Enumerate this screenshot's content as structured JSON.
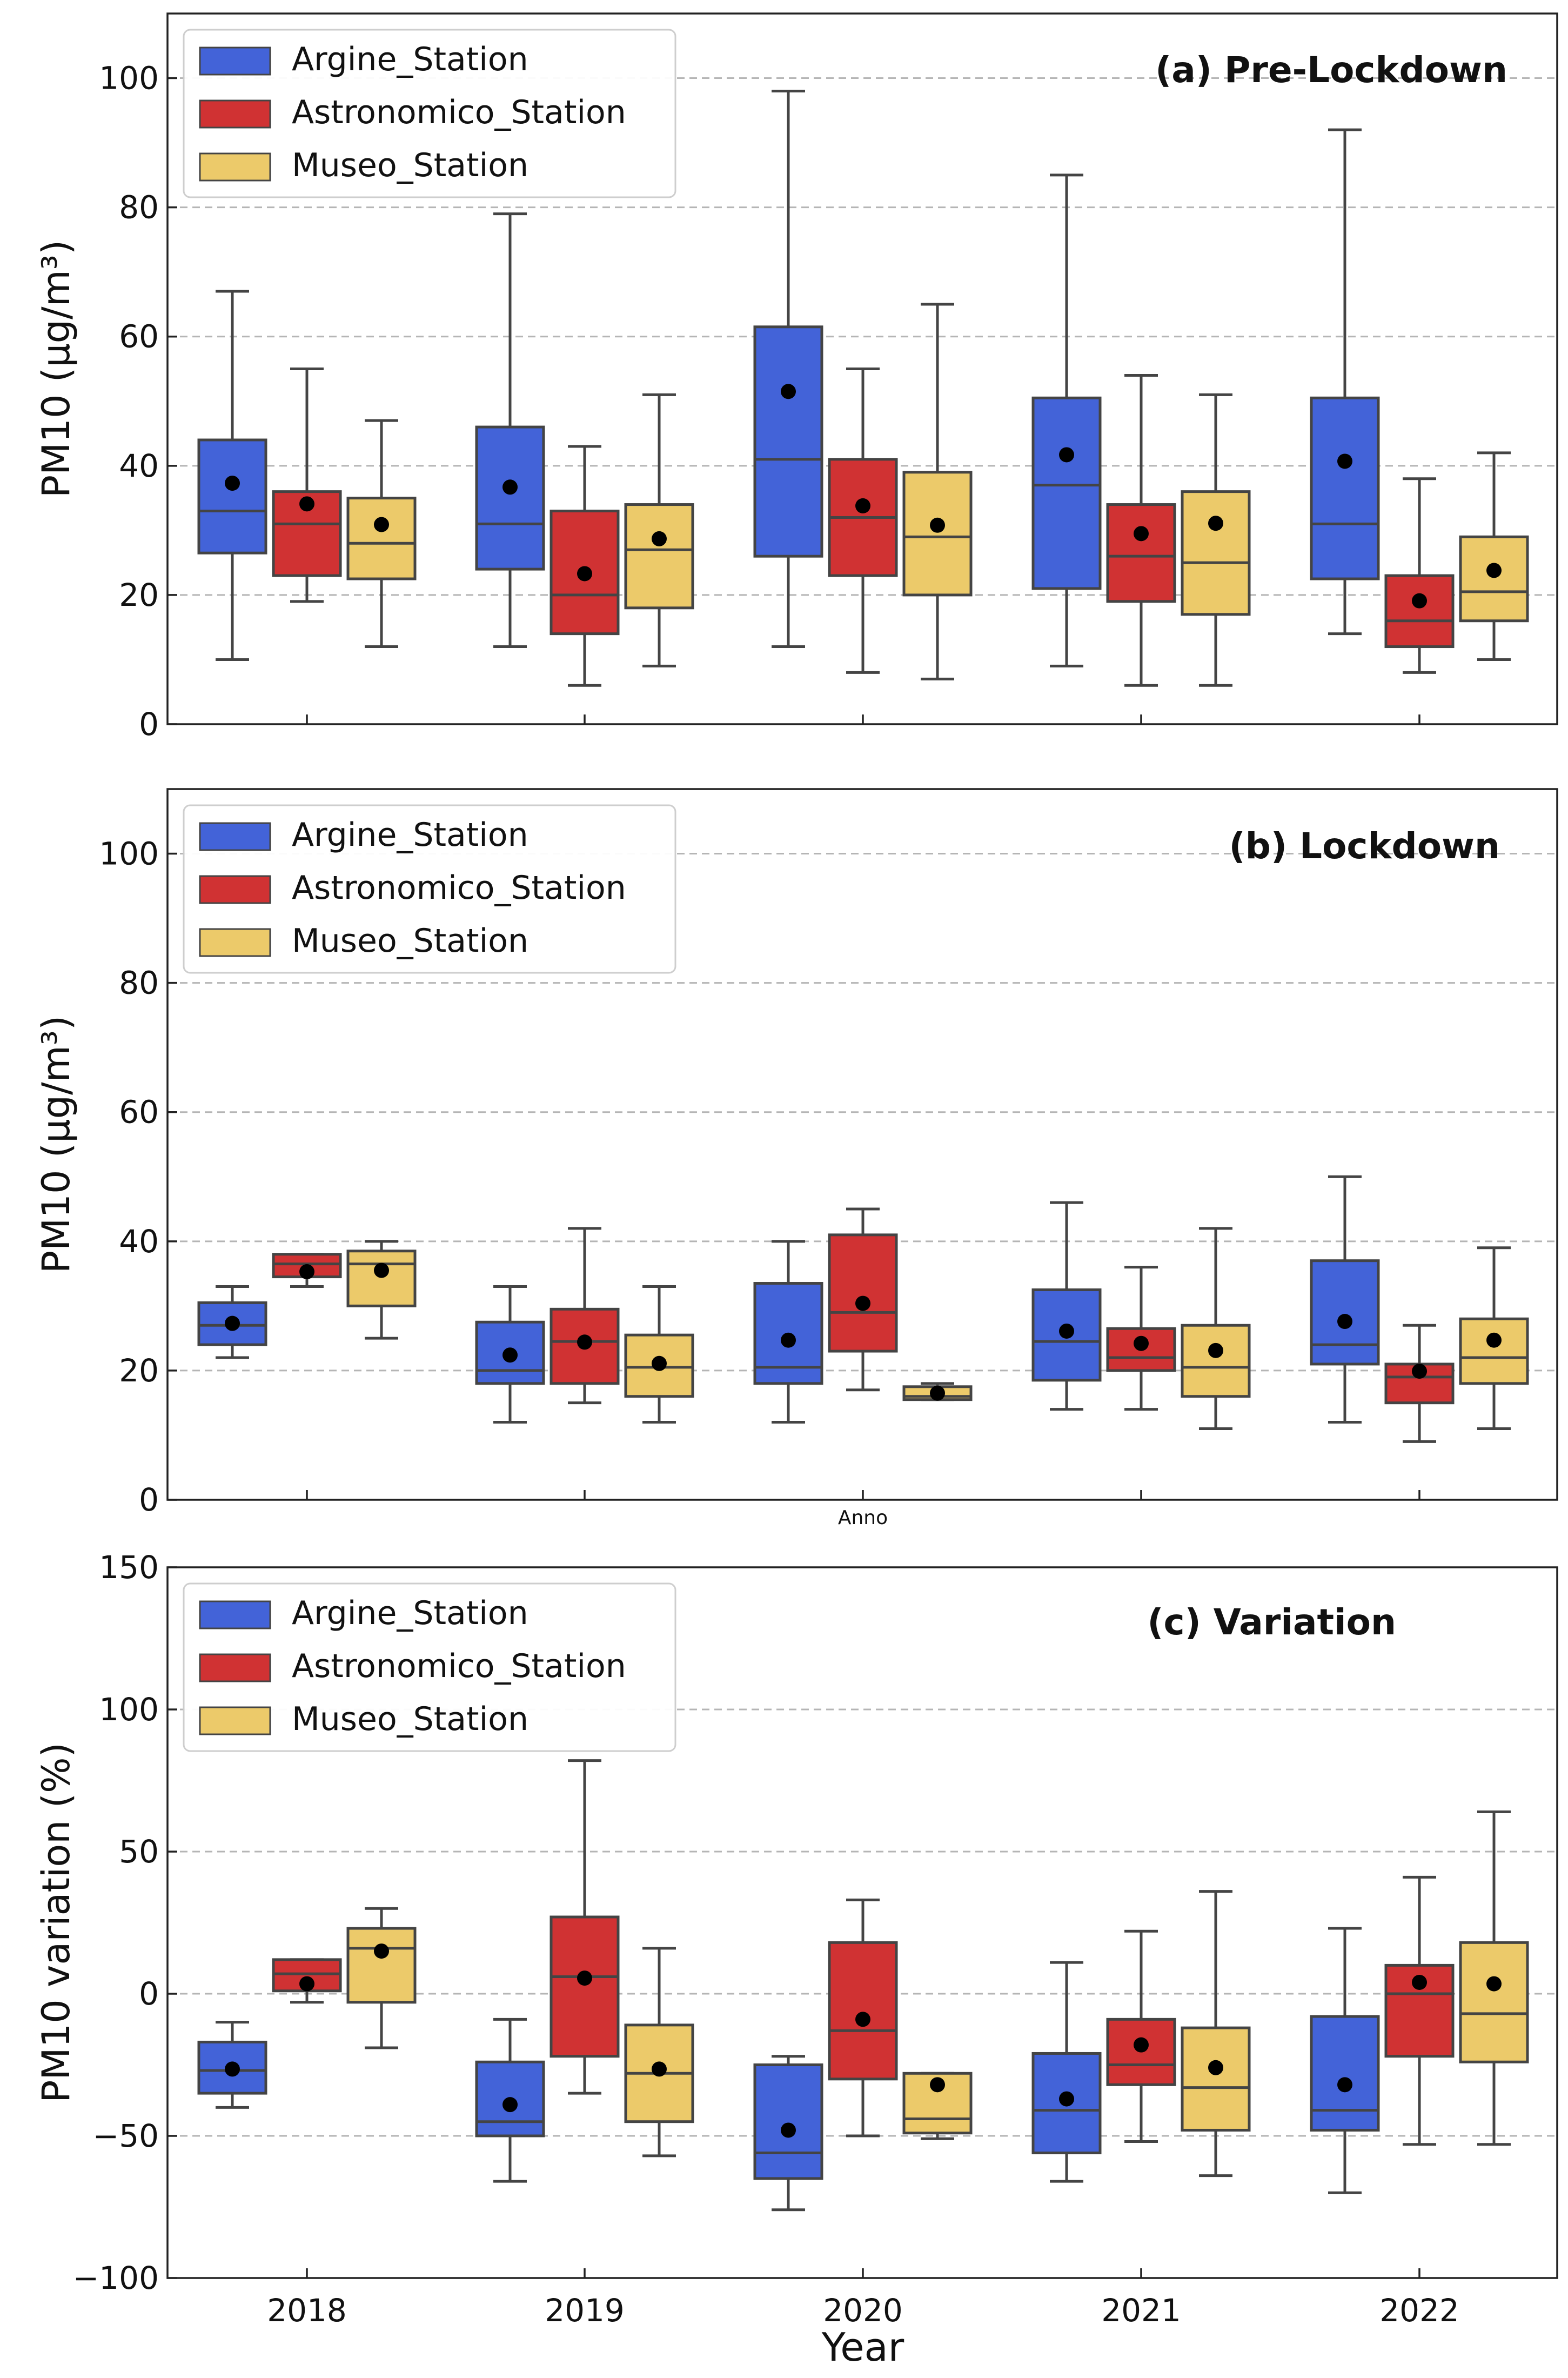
{
  "colors": {
    "Argine_Station": "#4363d8",
    "Astronomico_Station": "#d03233",
    "Museo_Station": "#ecca6a",
    "frame": "#222222",
    "grid": "#b5b5b5",
    "whisker": "#444444",
    "mean": "#000000"
  },
  "shared_x": {
    "categories": [
      "2018",
      "2019",
      "2020",
      "2021",
      "2022"
    ],
    "xlabel": "Year",
    "middle_annotation": "Anno"
  },
  "legend": {
    "items": [
      "Argine_Station",
      "Astronomico_Station",
      "Museo_Station"
    ]
  },
  "chart_data": [
    {
      "type": "box",
      "title": "(a) Pre-Lockdown",
      "ylabel": "PM10 (µg/m³)",
      "ylim": [
        0,
        110
      ],
      "yticks": [
        0,
        20,
        40,
        60,
        80,
        100
      ],
      "grid": "horizontal dashed",
      "legend_position": "top-left",
      "categories": [
        "2018",
        "2019",
        "2020",
        "2021",
        "2022"
      ],
      "series": [
        {
          "name": "Argine_Station",
          "boxes": [
            {
              "min": 10,
              "q1": 26.5,
              "median": 33,
              "q3": 44,
              "max": 67,
              "mean": 37.3
            },
            {
              "min": 12,
              "q1": 24,
              "median": 31,
              "q3": 46,
              "max": 79,
              "mean": 36.7
            },
            {
              "min": 12,
              "q1": 26,
              "median": 41,
              "q3": 61.5,
              "max": 98,
              "mean": 51.5
            },
            {
              "min": 9,
              "q1": 21,
              "median": 37,
              "q3": 50.5,
              "max": 85,
              "mean": 41.7
            },
            {
              "min": 14,
              "q1": 22.5,
              "median": 31,
              "q3": 50.5,
              "max": 92,
              "mean": 40.7
            }
          ]
        },
        {
          "name": "Astronomico_Station",
          "boxes": [
            {
              "min": 19,
              "q1": 23,
              "median": 31,
              "q3": 36,
              "max": 55,
              "mean": 34.1
            },
            {
              "min": 6,
              "q1": 14,
              "median": 20,
              "q3": 33,
              "max": 43,
              "mean": 23.3
            },
            {
              "min": 8,
              "q1": 23,
              "median": 32,
              "q3": 41,
              "max": 55,
              "mean": 33.8
            },
            {
              "min": 6,
              "q1": 19,
              "median": 26,
              "q3": 34,
              "max": 54,
              "mean": 29.5
            },
            {
              "min": 8,
              "q1": 12,
              "median": 16,
              "q3": 23,
              "max": 38,
              "mean": 19.1
            }
          ]
        },
        {
          "name": "Museo_Station",
          "boxes": [
            {
              "min": 12,
              "q1": 22.5,
              "median": 28,
              "q3": 35,
              "max": 47,
              "mean": 30.9
            },
            {
              "min": 9,
              "q1": 18,
              "median": 27,
              "q3": 34,
              "max": 51,
              "mean": 28.7
            },
            {
              "min": 7,
              "q1": 20,
              "median": 29,
              "q3": 39,
              "max": 65,
              "mean": 30.8
            },
            {
              "min": 6,
              "q1": 17,
              "median": 25,
              "q3": 36,
              "max": 51,
              "mean": 31.1
            },
            {
              "min": 10,
              "q1": 16,
              "median": 20.5,
              "q3": 29,
              "max": 42,
              "mean": 23.8
            }
          ]
        }
      ]
    },
    {
      "type": "box",
      "title": "(b) Lockdown",
      "ylabel": "PM10 (µg/m³)",
      "ylim": [
        0,
        110
      ],
      "yticks": [
        0,
        20,
        40,
        60,
        80,
        100
      ],
      "grid": "horizontal dashed",
      "legend_position": "top-left",
      "categories": [
        "2018",
        "2019",
        "2020",
        "2021",
        "2022"
      ],
      "series": [
        {
          "name": "Argine_Station",
          "boxes": [
            {
              "min": 22,
              "q1": 24,
              "median": 27,
              "q3": 30.5,
              "max": 33,
              "mean": 27.3
            },
            {
              "min": 12,
              "q1": 18,
              "median": 20,
              "q3": 27.5,
              "max": 33,
              "mean": 22.4
            },
            {
              "min": 12,
              "q1": 18,
              "median": 20.5,
              "q3": 33.5,
              "max": 40,
              "mean": 24.7
            },
            {
              "min": 14,
              "q1": 18.5,
              "median": 24.5,
              "q3": 32.5,
              "max": 46,
              "mean": 26.1
            },
            {
              "min": 12,
              "q1": 21,
              "median": 24,
              "q3": 37,
              "max": 50,
              "mean": 27.6
            }
          ]
        },
        {
          "name": "Astronomico_Station",
          "boxes": [
            {
              "min": 33,
              "q1": 34.5,
              "median": 36.5,
              "q3": 38,
              "max": 38,
              "mean": 35.3
            },
            {
              "min": 15,
              "q1": 18,
              "median": 24.5,
              "q3": 29.5,
              "max": 42,
              "mean": 24.4
            },
            {
              "min": 17,
              "q1": 23,
              "median": 29,
              "q3": 41,
              "max": 45,
              "mean": 30.4
            },
            {
              "min": 14,
              "q1": 20,
              "median": 22,
              "q3": 26.5,
              "max": 36,
              "mean": 24.2
            },
            {
              "min": 9,
              "q1": 15,
              "median": 19,
              "q3": 21,
              "max": 27,
              "mean": 19.9
            }
          ]
        },
        {
          "name": "Museo_Station",
          "boxes": [
            {
              "min": 25,
              "q1": 30,
              "median": 36.5,
              "q3": 38.5,
              "max": 40,
              "mean": 35.5
            },
            {
              "min": 12,
              "q1": 16,
              "median": 20.5,
              "q3": 25.5,
              "max": 33,
              "mean": 21.1
            },
            {
              "min": 15.5,
              "q1": 15.5,
              "median": 16,
              "q3": 17.5,
              "max": 18,
              "mean": 16.5
            },
            {
              "min": 11,
              "q1": 16,
              "median": 20.5,
              "q3": 27,
              "max": 42,
              "mean": 23.1
            },
            {
              "min": 11,
              "q1": 18,
              "median": 22,
              "q3": 28,
              "max": 39,
              "mean": 24.7
            }
          ]
        }
      ]
    },
    {
      "type": "box",
      "title": "(c) Variation",
      "ylabel": "PM10 variation (%)",
      "xlabel": "Year",
      "ylim": [
        -100,
        150
      ],
      "yticks": [
        -100,
        -50,
        0,
        50,
        100,
        150
      ],
      "grid": "horizontal dashed",
      "legend_position": "top-left",
      "categories": [
        "2018",
        "2019",
        "2020",
        "2021",
        "2022"
      ],
      "series": [
        {
          "name": "Argine_Station",
          "boxes": [
            {
              "min": -40,
              "q1": -35,
              "median": -27,
              "q3": -17,
              "max": -10,
              "mean": -26.5
            },
            {
              "min": -66,
              "q1": -50,
              "median": -45,
              "q3": -24,
              "max": -9,
              "mean": -39
            },
            {
              "min": -76,
              "q1": -65,
              "median": -56,
              "q3": -25,
              "max": -22,
              "mean": -48
            },
            {
              "min": -66,
              "q1": -56,
              "median": -41,
              "q3": -21,
              "max": 11,
              "mean": -37
            },
            {
              "min": -70,
              "q1": -48,
              "median": -41,
              "q3": -8,
              "max": 23,
              "mean": -32
            }
          ]
        },
        {
          "name": "Astronomico_Station",
          "boxes": [
            {
              "min": -3,
              "q1": 1,
              "median": 7,
              "q3": 12,
              "max": 12,
              "mean": 3.5
            },
            {
              "min": -35,
              "q1": -22,
              "median": 6,
              "q3": 27,
              "max": 82,
              "mean": 5.5
            },
            {
              "min": -50,
              "q1": -30,
              "median": -13,
              "q3": 18,
              "max": 33,
              "mean": -9
            },
            {
              "min": -52,
              "q1": -32,
              "median": -25,
              "q3": -9,
              "max": 22,
              "mean": -18
            },
            {
              "min": -53,
              "q1": -22,
              "median": 0,
              "q3": 10,
              "max": 41,
              "mean": 4
            }
          ]
        },
        {
          "name": "Museo_Station",
          "boxes": [
            {
              "min": -19,
              "q1": -3,
              "median": 16,
              "q3": 23,
              "max": 30,
              "mean": 15
            },
            {
              "min": -57,
              "q1": -45,
              "median": -28,
              "q3": -11,
              "max": 16,
              "mean": -26.5
            },
            {
              "min": -51,
              "q1": -49,
              "median": -44,
              "q3": -28,
              "max": -28,
              "mean": -32
            },
            {
              "min": -64,
              "q1": -48,
              "median": -33,
              "q3": -12,
              "max": 36,
              "mean": -26
            },
            {
              "min": -53,
              "q1": -24,
              "median": -7,
              "q3": 18,
              "max": 64,
              "mean": 3.5
            }
          ]
        }
      ]
    }
  ]
}
